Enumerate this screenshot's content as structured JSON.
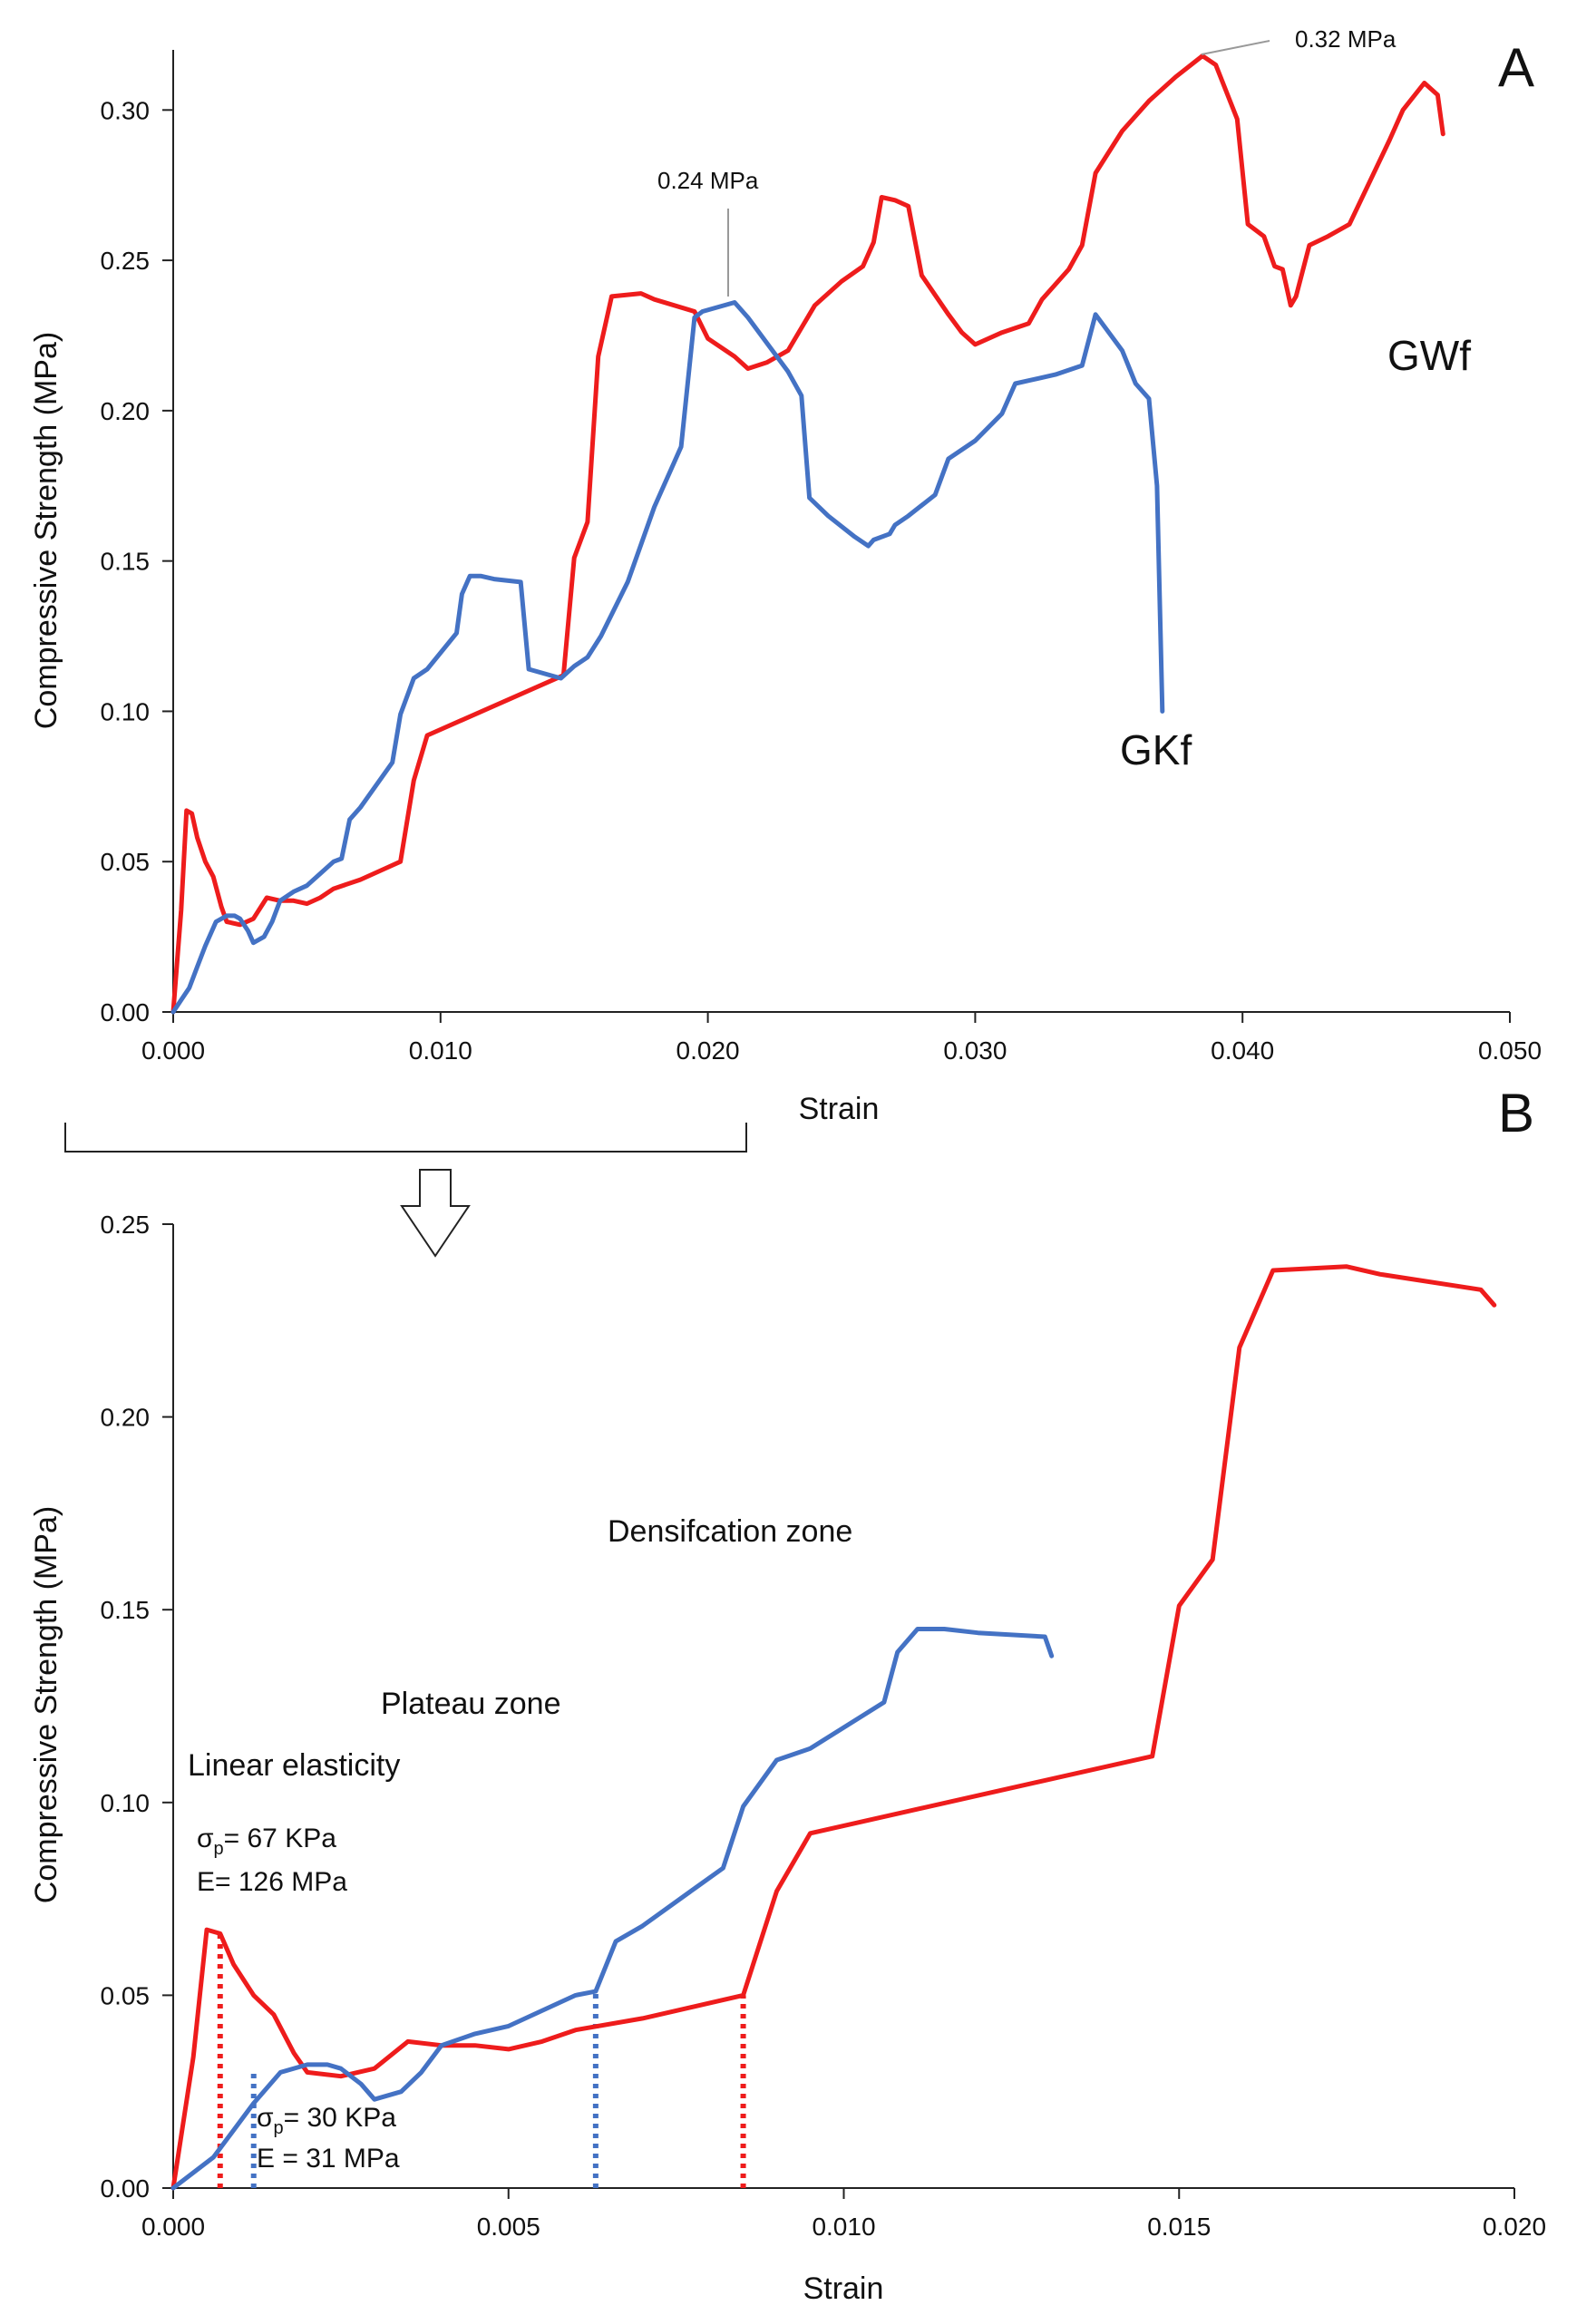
{
  "chart_data": [
    {
      "panel": "A",
      "type": "line",
      "xlabel": "Strain",
      "ylabel": "Compressive Strength (MPa)",
      "xlim": [
        0,
        0.05
      ],
      "ylim": [
        0,
        0.32
      ],
      "xticks": [
        "0.000",
        "0.010",
        "0.020",
        "0.030",
        "0.040",
        "0.050"
      ],
      "yticks": [
        "0.00",
        "0.05",
        "0.10",
        "0.15",
        "0.20",
        "0.25",
        "0.30"
      ],
      "series": [
        {
          "name": "GWf",
          "color": "#ee1c1c",
          "x": [
            0,
            0.0003,
            0.0005,
            0.0007,
            0.0009,
            0.0012,
            0.0015,
            0.0018,
            0.002,
            0.0025,
            0.003,
            0.0035,
            0.004,
            0.0045,
            0.005,
            0.0055,
            0.006,
            0.007,
            0.008,
            0.0085,
            0.009,
            0.0095,
            0.0146,
            0.015,
            0.0155,
            0.0159,
            0.0164,
            0.0175,
            0.018,
            0.0195,
            0.02,
            0.021,
            0.0215,
            0.0222,
            0.023,
            0.024,
            0.025,
            0.0258,
            0.0262,
            0.0265,
            0.027,
            0.0275,
            0.028,
            0.029,
            0.0295,
            0.03,
            0.031,
            0.032,
            0.0325,
            0.0335,
            0.034,
            0.0345,
            0.0355,
            0.0365,
            0.0375,
            0.0385,
            0.039,
            0.0398,
            0.0402,
            0.0408,
            0.0412,
            0.0415,
            0.0418,
            0.042,
            0.0425,
            0.0432,
            0.044,
            0.0455,
            0.046,
            0.0468,
            0.0473,
            0.0475
          ],
          "y": [
            0,
            0.034,
            0.067,
            0.066,
            0.058,
            0.05,
            0.045,
            0.035,
            0.03,
            0.029,
            0.031,
            0.038,
            0.037,
            0.037,
            0.036,
            0.038,
            0.041,
            0.044,
            0.048,
            0.05,
            0.077,
            0.092,
            0.112,
            0.151,
            0.163,
            0.218,
            0.238,
            0.239,
            0.237,
            0.233,
            0.224,
            0.218,
            0.214,
            0.216,
            0.22,
            0.235,
            0.243,
            0.248,
            0.256,
            0.271,
            0.27,
            0.268,
            0.245,
            0.232,
            0.226,
            0.222,
            0.226,
            0.229,
            0.237,
            0.247,
            0.255,
            0.279,
            0.293,
            0.303,
            0.311,
            0.318,
            0.315,
            0.297,
            0.262,
            0.258,
            0.248,
            0.247,
            0.235,
            0.238,
            0.255,
            0.258,
            0.262,
            0.29,
            0.3,
            0.309,
            0.305,
            0.292
          ]
        },
        {
          "name": "GKf",
          "color": "#4472c4",
          "x": [
            0,
            0.0003,
            0.0006,
            0.0009,
            0.0012,
            0.0016,
            0.002,
            0.0023,
            0.0025,
            0.0028,
            0.003,
            0.0034,
            0.0037,
            0.004,
            0.0045,
            0.005,
            0.0055,
            0.006,
            0.0063,
            0.0066,
            0.007,
            0.0078,
            0.0082,
            0.0085,
            0.009,
            0.0095,
            0.0106,
            0.0108,
            0.0111,
            0.0115,
            0.012,
            0.013,
            0.0133,
            0.0145,
            0.015,
            0.0155,
            0.016,
            0.017,
            0.018,
            0.019,
            0.0195,
            0.0198,
            0.021,
            0.0215,
            0.023,
            0.0235,
            0.0238,
            0.0245,
            0.0255,
            0.026,
            0.0262,
            0.0268,
            0.027,
            0.0275,
            0.0285,
            0.029,
            0.03,
            0.031,
            0.0315,
            0.032,
            0.033,
            0.034,
            0.0345,
            0.0355,
            0.036,
            0.0365,
            0.0368,
            0.037
          ],
          "y": [
            0,
            0.004,
            0.008,
            0.015,
            0.022,
            0.03,
            0.032,
            0.032,
            0.031,
            0.027,
            0.023,
            0.025,
            0.03,
            0.037,
            0.04,
            0.042,
            0.046,
            0.05,
            0.051,
            0.064,
            0.068,
            0.078,
            0.083,
            0.099,
            0.111,
            0.114,
            0.126,
            0.139,
            0.145,
            0.145,
            0.144,
            0.143,
            0.114,
            0.111,
            0.115,
            0.118,
            0.125,
            0.143,
            0.168,
            0.188,
            0.231,
            0.233,
            0.236,
            0.231,
            0.213,
            0.205,
            0.171,
            0.165,
            0.158,
            0.155,
            0.157,
            0.159,
            0.162,
            0.165,
            0.172,
            0.184,
            0.19,
            0.199,
            0.209,
            0.21,
            0.212,
            0.215,
            0.232,
            0.22,
            0.209,
            0.204,
            0.175,
            0.1
          ]
        }
      ],
      "annotations": [
        {
          "text": "0.24 MPa",
          "at_x": 0.021,
          "at_y": 0.237
        },
        {
          "text": "0.32 MPa",
          "at_x": 0.0385,
          "at_y": 0.318
        }
      ]
    },
    {
      "panel": "B",
      "type": "line",
      "xlabel": "Strain",
      "ylabel": "Compressive Strength (MPa)",
      "xlim": [
        0,
        0.02
      ],
      "ylim": [
        0,
        0.25
      ],
      "xticks": [
        "0.000",
        "0.005",
        "0.010",
        "0.015",
        "0.020"
      ],
      "yticks": [
        "0.00",
        "0.05",
        "0.10",
        "0.15",
        "0.20",
        "0.25"
      ],
      "series": [
        {
          "name": "GWf",
          "color": "#ee1c1c",
          "x": [
            0,
            0.0003,
            0.0005,
            0.0007,
            0.0009,
            0.0012,
            0.0015,
            0.0018,
            0.002,
            0.0025,
            0.003,
            0.0035,
            0.004,
            0.0045,
            0.005,
            0.0055,
            0.006,
            0.007,
            0.008,
            0.0085,
            0.009,
            0.0095,
            0.0146,
            0.015,
            0.0155,
            0.0159,
            0.0164,
            0.0175,
            0.018,
            0.0195,
            0.0197
          ],
          "y": [
            0,
            0.034,
            0.067,
            0.066,
            0.058,
            0.05,
            0.045,
            0.035,
            0.03,
            0.029,
            0.031,
            0.038,
            0.037,
            0.037,
            0.036,
            0.038,
            0.041,
            0.044,
            0.048,
            0.05,
            0.077,
            0.092,
            0.112,
            0.151,
            0.163,
            0.218,
            0.238,
            0.239,
            0.237,
            0.233,
            0.229
          ]
        },
        {
          "name": "GKf",
          "color": "#4472c4",
          "x": [
            0,
            0.0003,
            0.0006,
            0.0009,
            0.0012,
            0.0016,
            0.002,
            0.0023,
            0.0025,
            0.0028,
            0.003,
            0.0034,
            0.0037,
            0.004,
            0.0045,
            0.005,
            0.0055,
            0.006,
            0.0063,
            0.0066,
            0.007,
            0.0078,
            0.0082,
            0.0085,
            0.009,
            0.0095,
            0.0106,
            0.0108,
            0.0111,
            0.0115,
            0.012,
            0.013,
            0.0131
          ],
          "y": [
            0,
            0.004,
            0.008,
            0.015,
            0.022,
            0.03,
            0.032,
            0.032,
            0.031,
            0.027,
            0.023,
            0.025,
            0.03,
            0.037,
            0.04,
            0.042,
            0.046,
            0.05,
            0.051,
            0.064,
            0.068,
            0.078,
            0.083,
            0.099,
            0.111,
            0.114,
            0.126,
            0.139,
            0.145,
            0.145,
            0.144,
            0.143,
            0.138
          ]
        }
      ],
      "markers": [
        {
          "series": "GWf",
          "x": 0.0007,
          "y": 0.067
        },
        {
          "series": "GKf",
          "x": 0.0012,
          "y": 0.031
        },
        {
          "series": "GKf",
          "x": 0.0063,
          "y": 0.051
        },
        {
          "series": "GWf",
          "x": 0.0085,
          "y": 0.05
        }
      ],
      "zones": [
        "Densifcation zone",
        "Plateau zone",
        "Linear elasticity"
      ]
    }
  ],
  "labels": {
    "panel_a": "A",
    "panel_b": "B",
    "series_gwf": "GWf",
    "series_gkf": "GKf",
    "peak_gkf": "0.24 MPa",
    "peak_gwf": "0.32 MPa",
    "zone_densification": "Densifcation zone",
    "zone_plateau": "Plateau zone",
    "zone_linear": "Linear elasticity",
    "gwf_sigma_prefix": "σ",
    "gwf_sigma_sub": "p",
    "gwf_sigma_value": "= 67 KPa",
    "gwf_modulus": "E= 126 MPa",
    "gkf_sigma_prefix": "σ",
    "gkf_sigma_sub": "p",
    "gkf_sigma_value": "= 30 KPa",
    "gkf_modulus": "E = 31 MPa",
    "a_xlabel": "Strain",
    "a_ylabel": "Compressive Strength (MPa)",
    "b_xlabel": "Strain",
    "b_ylabel": "Compressive Strength (MPa)"
  }
}
